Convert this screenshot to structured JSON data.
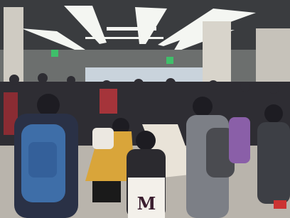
{
  "scene": {
    "tote_bag_text": "M"
  }
}
